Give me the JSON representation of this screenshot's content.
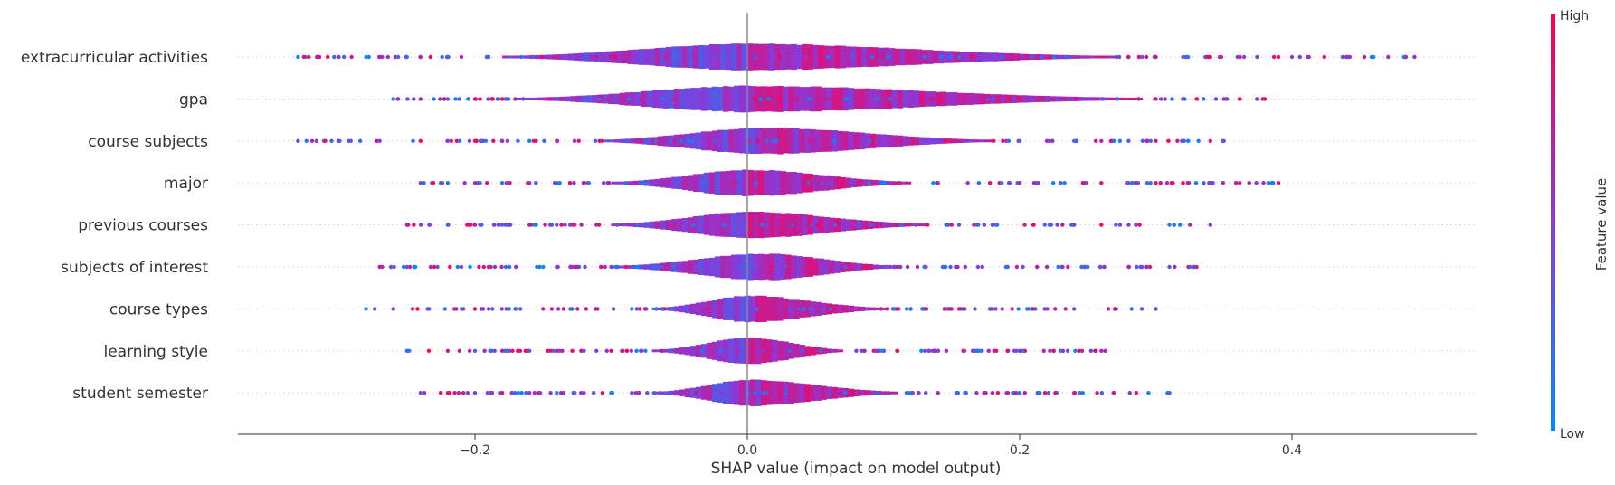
{
  "chart_data": {
    "type": "violin",
    "xlabel": "SHAP value (impact on model output)",
    "x_ticks": [
      -0.2,
      0.0,
      0.2,
      0.4
    ],
    "x_tick_labels": [
      "−0.2",
      "0.0",
      "0.2",
      "0.4"
    ],
    "xlim": [
      -0.37,
      0.53
    ],
    "colorbar": {
      "title": "Feature value",
      "high_label": "High",
      "low_label": "Low",
      "high_color": "#ff0052",
      "low_color": "#008bfb",
      "mid_color": "#8a39d8"
    },
    "features": [
      {
        "name": "extracurricular activities",
        "min": -0.33,
        "max": 0.49,
        "body": [
          -0.18,
          0.27
        ],
        "peak": 0.0,
        "outliers": [
          -0.33,
          -0.3,
          -0.28,
          -0.27,
          -0.25,
          -0.24,
          -0.22,
          -0.21,
          -0.19,
          0.28,
          0.29,
          0.3,
          0.32,
          0.34,
          0.36,
          0.39,
          0.4,
          0.46,
          0.49
        ]
      },
      {
        "name": "gpa",
        "min": -0.26,
        "max": 0.38,
        "body": [
          -0.17,
          0.29
        ],
        "peak": 0.0,
        "outliers": [
          -0.26,
          -0.24,
          -0.22,
          -0.2,
          -0.19,
          0.3,
          0.32,
          0.33,
          0.35,
          0.38
        ]
      },
      {
        "name": "course subjects",
        "min": -0.33,
        "max": 0.35,
        "body": [
          -0.11,
          0.18
        ],
        "peak": 0.01,
        "outliers": [
          -0.33,
          -0.31,
          -0.27,
          -0.24,
          -0.22,
          -0.2,
          -0.18,
          -0.16,
          -0.14,
          0.2,
          0.22,
          0.24,
          0.26,
          0.28,
          0.3,
          0.32,
          0.34,
          0.35
        ]
      },
      {
        "name": "major",
        "min": -0.24,
        "max": 0.39,
        "body": [
          -0.1,
          0.12
        ],
        "peak": 0.0,
        "outliers": [
          -0.24,
          -0.22,
          -0.2,
          -0.18,
          -0.16,
          -0.14,
          0.14,
          0.17,
          0.2,
          0.23,
          0.26,
          0.28,
          0.3,
          0.34,
          0.39
        ]
      },
      {
        "name": "previous courses",
        "min": -0.25,
        "max": 0.34,
        "body": [
          -0.1,
          0.13
        ],
        "peak": 0.0,
        "outliers": [
          -0.25,
          -0.22,
          -0.2,
          -0.18,
          -0.16,
          -0.14,
          0.15,
          0.18,
          0.21,
          0.24,
          0.26,
          0.28,
          0.31,
          0.34
        ]
      },
      {
        "name": "subjects of interest",
        "min": -0.27,
        "max": 0.33,
        "body": [
          -0.1,
          0.11
        ],
        "peak": 0.01,
        "outliers": [
          -0.27,
          -0.25,
          -0.23,
          -0.21,
          -0.19,
          -0.17,
          -0.15,
          -0.13,
          0.13,
          0.16,
          0.19,
          0.22,
          0.25,
          0.28,
          0.31,
          0.33
        ]
      },
      {
        "name": "course types",
        "min": -0.28,
        "max": 0.3,
        "body": [
          -0.07,
          0.1
        ],
        "peak": 0.0,
        "outliers": [
          -0.28,
          -0.26,
          -0.21,
          -0.19,
          -0.17,
          -0.15,
          -0.13,
          -0.11,
          0.12,
          0.15,
          0.18,
          0.21,
          0.24,
          0.27,
          0.3
        ]
      },
      {
        "name": "learning style",
        "min": -0.25,
        "max": 0.27,
        "body": [
          -0.07,
          0.07
        ],
        "peak": 0.0,
        "outliers": [
          -0.25,
          -0.22,
          -0.2,
          -0.18,
          -0.16,
          -0.14,
          -0.12,
          -0.1,
          0.08,
          0.11,
          0.14,
          0.17,
          0.2,
          0.23,
          0.26
        ]
      },
      {
        "name": "student semester",
        "min": -0.24,
        "max": 0.31,
        "body": [
          -0.07,
          0.11
        ],
        "peak": 0.0,
        "outliers": [
          -0.24,
          -0.22,
          -0.2,
          -0.18,
          -0.16,
          -0.14,
          -0.12,
          -0.1,
          -0.08,
          0.12,
          0.14,
          0.16,
          0.18,
          0.2,
          0.24,
          0.31
        ]
      }
    ]
  }
}
